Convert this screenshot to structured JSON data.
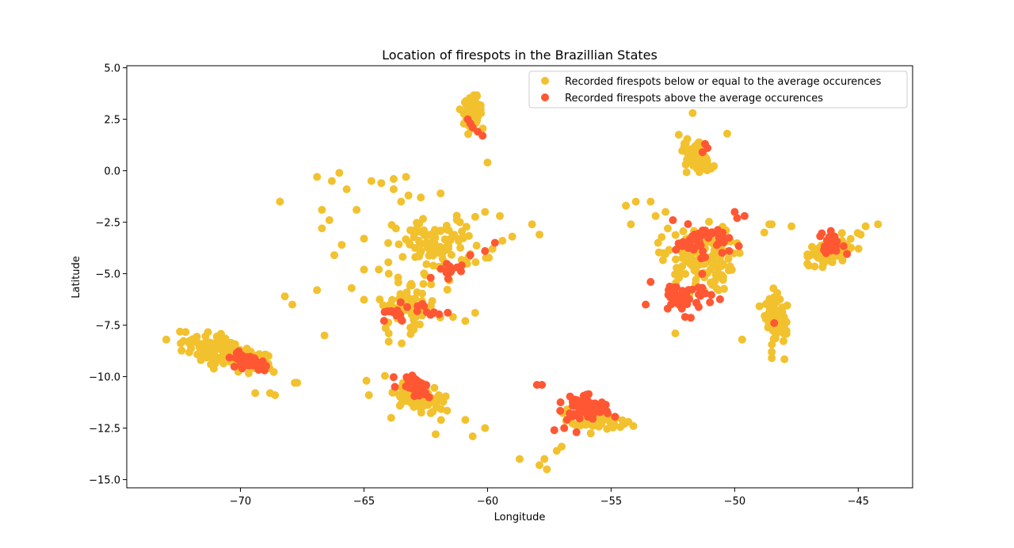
{
  "colors": {
    "below": "#f2c12e",
    "above": "#ff5733"
  },
  "chart_data": {
    "type": "scatter",
    "title": "Location of firespots in the Brazillian States",
    "xlabel": "Longitude",
    "ylabel": "Latitude",
    "xlim": [
      -74.6,
      -42.8
    ],
    "ylim": [
      -15.4,
      5.1
    ],
    "xticks": [
      -70,
      -65,
      -60,
      -55,
      -50,
      -45
    ],
    "xtick_labels": [
      "−70",
      "−65",
      "−60",
      "−55",
      "−50",
      "−45"
    ],
    "yticks": [
      5.0,
      2.5,
      0.0,
      -2.5,
      -5.0,
      -7.5,
      -10.0,
      -12.5,
      -15.0
    ],
    "ytick_labels": [
      "5.0",
      "2.5",
      "0.0",
      "−2.5",
      "−5.0",
      "−7.5",
      "−10.0",
      "−12.5",
      "−15.0"
    ],
    "grid": false,
    "legend_position": "top-right",
    "series": [
      {
        "name": "Recorded firespots below or equal to the average occurences",
        "color": "#f2c12e",
        "clusters": [
          {
            "cx": -70.5,
            "cy": -8.9,
            "sx": 1.6,
            "sy": 0.55,
            "n": 130,
            "rot": -0.35
          },
          {
            "cx": -62.8,
            "cy": -11.0,
            "sx": 0.8,
            "sy": 0.5,
            "n": 110,
            "rot": -0.45
          },
          {
            "cx": -60.6,
            "cy": 2.9,
            "sx": 0.3,
            "sy": 0.55,
            "n": 110,
            "rot": 0
          },
          {
            "cx": -51.5,
            "cy": 0.6,
            "sx": 0.45,
            "sy": 0.7,
            "n": 90,
            "rot": 0.5
          },
          {
            "cx": -48.3,
            "cy": -7.0,
            "sx": 0.35,
            "sy": 0.9,
            "n": 90,
            "rot": 0.2
          },
          {
            "cx": -46.2,
            "cy": -4.0,
            "sx": 0.8,
            "sy": 0.45,
            "n": 110,
            "rot": 0.55
          },
          {
            "cx": -55.6,
            "cy": -12.1,
            "sx": 0.8,
            "sy": 0.4,
            "n": 80,
            "rot": -0.2
          },
          {
            "cx": -51.5,
            "cy": -4.3,
            "sx": 1.2,
            "sy": 1.3,
            "n": 130,
            "rot": 0
          },
          {
            "cx": -62.0,
            "cy": -3.6,
            "sx": 1.5,
            "sy": 1.1,
            "n": 100,
            "rot": 0
          },
          {
            "cx": -63.2,
            "cy": -6.5,
            "sx": 1.0,
            "sy": 1.0,
            "n": 60,
            "rot": 0
          }
        ],
        "points": [
          {
            "x": -68.4,
            "y": -1.5
          },
          {
            "x": -68.2,
            "y": -6.1
          },
          {
            "x": -67.9,
            "y": -6.5
          },
          {
            "x": -66.9,
            "y": -5.8
          },
          {
            "x": -66.6,
            "y": -8.0
          },
          {
            "x": -66.0,
            "y": -0.1
          },
          {
            "x": -66.3,
            "y": -0.5
          },
          {
            "x": -66.2,
            "y": -4.1
          },
          {
            "x": -66.9,
            "y": -0.3
          },
          {
            "x": -66.7,
            "y": -2.8
          },
          {
            "x": -66.7,
            "y": -1.9
          },
          {
            "x": -66.4,
            "y": -2.4
          },
          {
            "x": -65.7,
            "y": -0.9
          },
          {
            "x": -65.3,
            "y": -1.9
          },
          {
            "x": -65.0,
            "y": -3.3
          },
          {
            "x": -65.0,
            "y": -4.8
          },
          {
            "x": -64.4,
            "y": -4.8
          },
          {
            "x": -64.0,
            "y": -5.0
          },
          {
            "x": -64.7,
            "y": -0.5
          },
          {
            "x": -64.3,
            "y": -0.6
          },
          {
            "x": -63.8,
            "y": -0.9
          },
          {
            "x": -63.5,
            "y": -1.5
          },
          {
            "x": -63.8,
            "y": -0.4
          },
          {
            "x": -63.3,
            "y": -0.3
          },
          {
            "x": -63.2,
            "y": -1.2
          },
          {
            "x": -62.7,
            "y": -1.3
          },
          {
            "x": -61.9,
            "y": -1.1
          },
          {
            "x": -65.9,
            "y": -3.6
          },
          {
            "x": -65.5,
            "y": -5.7
          },
          {
            "x": -64.9,
            "y": -10.2
          },
          {
            "x": -64.8,
            "y": -10.9
          },
          {
            "x": -64.0,
            "y": -8.3
          },
          {
            "x": -64.0,
            "y": -7.9
          },
          {
            "x": -63.9,
            "y": -12.0
          },
          {
            "x": -61.4,
            "y": -7.1
          },
          {
            "x": -60.5,
            "y": -6.9
          },
          {
            "x": -60.9,
            "y": -7.3
          },
          {
            "x": -60.0,
            "y": 0.4
          },
          {
            "x": -58.7,
            "y": -14.0
          },
          {
            "x": -57.9,
            "y": -14.3
          },
          {
            "x": -57.6,
            "y": -14.5
          },
          {
            "x": -57.7,
            "y": -14.0
          },
          {
            "x": -57.2,
            "y": -13.6
          },
          {
            "x": -57.0,
            "y": -13.4
          },
          {
            "x": -58.2,
            "y": -2.6
          },
          {
            "x": -57.9,
            "y": -3.1
          },
          {
            "x": -60.6,
            "y": -12.9
          },
          {
            "x": -60.1,
            "y": -12.5
          },
          {
            "x": -60.9,
            "y": -12.1
          },
          {
            "x": -62.1,
            "y": -12.8
          },
          {
            "x": -54.2,
            "y": -2.6
          },
          {
            "x": -54.4,
            "y": -1.7
          },
          {
            "x": -54.0,
            "y": -1.5
          },
          {
            "x": -53.4,
            "y": -1.5
          },
          {
            "x": -53.2,
            "y": -2.2
          },
          {
            "x": -53.1,
            "y": -3.5
          },
          {
            "x": -52.8,
            "y": -2.0
          },
          {
            "x": -52.4,
            "y": -7.9
          },
          {
            "x": -54.1,
            "y": -12.4
          },
          {
            "x": -54.3,
            "y": -12.2
          },
          {
            "x": -51.7,
            "y": 2.8
          },
          {
            "x": -50.3,
            "y": 1.8
          },
          {
            "x": -49.7,
            "y": -8.2
          },
          {
            "x": -48.8,
            "y": -3.0
          },
          {
            "x": -48.6,
            "y": -2.6
          },
          {
            "x": -48.5,
            "y": -2.6
          },
          {
            "x": -47.7,
            "y": -2.7
          },
          {
            "x": -44.9,
            "y": -3.1
          },
          {
            "x": -44.2,
            "y": -2.6
          },
          {
            "x": -44.7,
            "y": -2.7
          },
          {
            "x": -48.5,
            "y": -9.1
          },
          {
            "x": -48.5,
            "y": -8.8
          },
          {
            "x": -68.8,
            "y": -10.8
          },
          {
            "x": -68.6,
            "y": -10.9
          },
          {
            "x": -69.4,
            "y": -10.8
          },
          {
            "x": -73.0,
            "y": -8.2
          },
          {
            "x": -71.6,
            "y": -9.2
          },
          {
            "x": -71.2,
            "y": -9.4
          },
          {
            "x": -67.8,
            "y": -10.3
          },
          {
            "x": -67.7,
            "y": -10.3
          },
          {
            "x": -59.8,
            "y": -3.8
          },
          {
            "x": -59.4,
            "y": -3.4
          },
          {
            "x": -59.0,
            "y": -3.2
          },
          {
            "x": -59.5,
            "y": -2.2
          },
          {
            "x": -60.1,
            "y": -2.0
          }
        ]
      },
      {
        "name": "Recorded firespots above the average occurences",
        "color": "#ff5733",
        "clusters": [
          {
            "cx": -69.6,
            "cy": -9.3,
            "sx": 0.65,
            "sy": 0.25,
            "n": 45,
            "rot": -0.35
          },
          {
            "cx": -62.9,
            "cy": -10.5,
            "sx": 0.45,
            "sy": 0.35,
            "n": 40,
            "rot": -0.45
          },
          {
            "cx": -56.0,
            "cy": -11.5,
            "sx": 0.75,
            "sy": 0.45,
            "n": 70,
            "rot": -0.3
          },
          {
            "cx": -51.3,
            "cy": -3.4,
            "sx": 0.9,
            "sy": 0.6,
            "n": 45,
            "rot": 0
          },
          {
            "cx": -52.0,
            "cy": -6.1,
            "sx": 1.0,
            "sy": 0.7,
            "n": 45,
            "rot": 0
          },
          {
            "cx": -46.0,
            "cy": -3.6,
            "sx": 0.3,
            "sy": 0.45,
            "n": 35,
            "rot": 0.6
          },
          {
            "cx": -63.8,
            "cy": -7.0,
            "sx": 0.55,
            "sy": 0.35,
            "n": 18,
            "rot": 0
          },
          {
            "cx": -61.5,
            "cy": -4.8,
            "sx": 0.45,
            "sy": 0.35,
            "n": 14,
            "rot": 0
          },
          {
            "cx": -62.5,
            "cy": -6.8,
            "sx": 0.5,
            "sy": 0.4,
            "n": 10,
            "rot": 0
          }
        ],
        "points": [
          {
            "x": -60.8,
            "y": 2.5
          },
          {
            "x": -60.6,
            "y": 2.1
          },
          {
            "x": -60.4,
            "y": 1.9
          },
          {
            "x": -60.2,
            "y": 1.7
          },
          {
            "x": -60.7,
            "y": 2.3
          },
          {
            "x": -51.2,
            "y": 1.3
          },
          {
            "x": -51.3,
            "y": 0.9
          },
          {
            "x": -51.1,
            "y": 1.1
          },
          {
            "x": -48.4,
            "y": -7.4
          },
          {
            "x": -52.5,
            "y": -2.4
          },
          {
            "x": -50.0,
            "y": -2.0
          },
          {
            "x": -49.6,
            "y": -2.2
          },
          {
            "x": -49.9,
            "y": -2.3
          },
          {
            "x": -60.1,
            "y": -3.9
          },
          {
            "x": -59.7,
            "y": -3.5
          },
          {
            "x": -60.7,
            "y": -4.1
          },
          {
            "x": -56.9,
            "y": -12.5
          },
          {
            "x": -56.4,
            "y": -12.7
          },
          {
            "x": -57.3,
            "y": -12.6
          },
          {
            "x": -58.0,
            "y": -10.4
          },
          {
            "x": -57.8,
            "y": -10.4
          },
          {
            "x": -62.3,
            "y": -5.2
          },
          {
            "x": -53.6,
            "y": -6.5
          },
          {
            "x": -53.4,
            "y": -5.4
          }
        ]
      }
    ]
  }
}
